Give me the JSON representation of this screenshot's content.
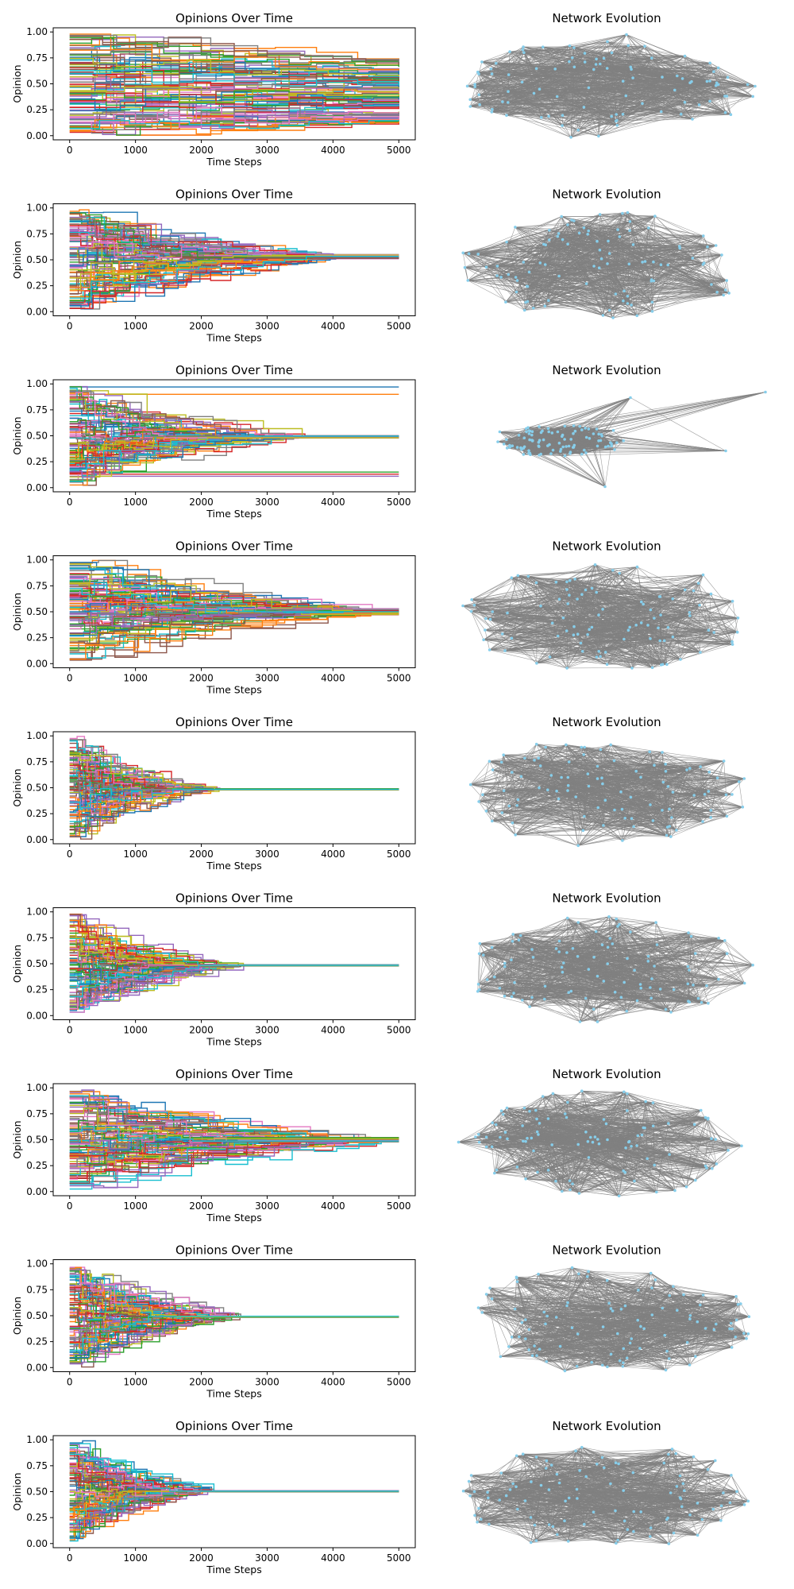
{
  "chart_data": [
    {
      "type": "line",
      "title": "Opinions Over Time",
      "xlabel": "Time Steps",
      "ylabel": "Opinion",
      "xlim": [
        -250,
        5250
      ],
      "ylim": [
        -0.04,
        1.04
      ],
      "xticks": [
        0,
        1000,
        2000,
        3000,
        4000,
        5000
      ],
      "yticks": [
        0.0,
        0.25,
        0.5,
        0.75,
        1.0
      ],
      "xtick_labels": [
        "0",
        "1000",
        "2000",
        "3000",
        "4000",
        "5000"
      ],
      "ytick_labels": [
        "0.00",
        "0.25",
        "0.50",
        "0.75",
        "1.00"
      ],
      "series_count": 100,
      "t_start": 0,
      "t_end": 5000,
      "initial_range": [
        0.02,
        0.98
      ],
      "final_range": [
        0.12,
        0.72
      ],
      "consensus_value": null,
      "consensus_step": null
    },
    {
      "type": "network",
      "title": "Network Evolution",
      "node_count": 100,
      "node_color": "#87ceeb",
      "edge_color": "#808080",
      "shape": "wide-cluster-with-outlier"
    },
    {
      "type": "line",
      "title": "Opinions Over Time",
      "xlabel": "Time Steps",
      "ylabel": "Opinion",
      "xlim": [
        -250,
        5250
      ],
      "ylim": [
        -0.04,
        1.04
      ],
      "xticks": [
        0,
        1000,
        2000,
        3000,
        4000,
        5000
      ],
      "yticks": [
        0.0,
        0.25,
        0.5,
        0.75,
        1.0
      ],
      "xtick_labels": [
        "0",
        "1000",
        "2000",
        "3000",
        "4000",
        "5000"
      ],
      "ytick_labels": [
        "0.00",
        "0.25",
        "0.50",
        "0.75",
        "1.00"
      ],
      "series_count": 100,
      "t_start": 0,
      "t_end": 5000,
      "initial_range": [
        0.02,
        0.98
      ],
      "final_range": [
        0.51,
        0.55
      ],
      "consensus_value": 0.53,
      "consensus_step": 4100
    },
    {
      "type": "network",
      "title": "Network Evolution",
      "node_count": 100,
      "node_color": "#87ceeb",
      "edge_color": "#808080",
      "shape": "dense-ellipse"
    },
    {
      "type": "line",
      "title": "Opinions Over Time",
      "xlabel": "Time Steps",
      "ylabel": "Opinion",
      "xlim": [
        -250,
        5250
      ],
      "ylim": [
        -0.04,
        1.04
      ],
      "xticks": [
        0,
        1000,
        2000,
        3000,
        4000,
        5000
      ],
      "yticks": [
        0.0,
        0.25,
        0.5,
        0.75,
        1.0
      ],
      "xtick_labels": [
        "0",
        "1000",
        "2000",
        "3000",
        "4000",
        "5000"
      ],
      "ytick_labels": [
        "0.00",
        "0.25",
        "0.50",
        "0.75",
        "1.00"
      ],
      "series_count": 100,
      "t_start": 0,
      "t_end": 5000,
      "initial_range": [
        0.02,
        0.98
      ],
      "final_range": [
        0.48,
        0.5
      ],
      "consensus_value": 0.49,
      "consensus_step": 3600,
      "outliers": [
        0.97,
        0.9,
        0.15,
        0.13,
        0.11
      ]
    },
    {
      "type": "network",
      "title": "Network Evolution",
      "node_count": 100,
      "node_color": "#87ceeb",
      "edge_color": "#808080",
      "shape": "compact-cluster-with-outliers"
    },
    {
      "type": "line",
      "title": "Opinions Over Time",
      "xlabel": "Time Steps",
      "ylabel": "Opinion",
      "xlim": [
        -250,
        5250
      ],
      "ylim": [
        -0.04,
        1.04
      ],
      "xticks": [
        0,
        1000,
        2000,
        3000,
        4000,
        5000
      ],
      "yticks": [
        0.0,
        0.25,
        0.5,
        0.75,
        1.0
      ],
      "xtick_labels": [
        "0",
        "1000",
        "2000",
        "3000",
        "4000",
        "5000"
      ],
      "ytick_labels": [
        "0.00",
        "0.25",
        "0.50",
        "0.75",
        "1.00"
      ],
      "series_count": 100,
      "t_start": 0,
      "t_end": 5000,
      "initial_range": [
        0.02,
        0.98
      ],
      "final_range": [
        0.47,
        0.53
      ],
      "consensus_value": 0.5,
      "consensus_step": 4800
    },
    {
      "type": "network",
      "title": "Network Evolution",
      "node_count": 100,
      "node_color": "#87ceeb",
      "edge_color": "#808080",
      "shape": "dense-ellipse"
    },
    {
      "type": "line",
      "title": "Opinions Over Time",
      "xlabel": "Time Steps",
      "ylabel": "Opinion",
      "xlim": [
        -250,
        5250
      ],
      "ylim": [
        -0.04,
        1.04
      ],
      "xticks": [
        0,
        1000,
        2000,
        3000,
        4000,
        5000
      ],
      "yticks": [
        0.0,
        0.25,
        0.5,
        0.75,
        1.0
      ],
      "xtick_labels": [
        "0",
        "1000",
        "2000",
        "3000",
        "4000",
        "5000"
      ],
      "ytick_labels": [
        "0.00",
        "0.25",
        "0.50",
        "0.75",
        "1.00"
      ],
      "series_count": 100,
      "t_start": 0,
      "t_end": 5000,
      "initial_range": [
        0.02,
        0.98
      ],
      "final_range": [
        0.48,
        0.49
      ],
      "consensus_value": 0.485,
      "consensus_step": 2300
    },
    {
      "type": "network",
      "title": "Network Evolution",
      "node_count": 100,
      "node_color": "#87ceeb",
      "edge_color": "#808080",
      "shape": "dense-ellipse"
    },
    {
      "type": "line",
      "title": "Opinions Over Time",
      "xlabel": "Time Steps",
      "ylabel": "Opinion",
      "xlim": [
        -250,
        5250
      ],
      "ylim": [
        -0.04,
        1.04
      ],
      "xticks": [
        0,
        1000,
        2000,
        3000,
        4000,
        5000
      ],
      "yticks": [
        0.0,
        0.25,
        0.5,
        0.75,
        1.0
      ],
      "xtick_labels": [
        "0",
        "1000",
        "2000",
        "3000",
        "4000",
        "5000"
      ],
      "ytick_labels": [
        "0.00",
        "0.25",
        "0.50",
        "0.75",
        "1.00"
      ],
      "series_count": 100,
      "t_start": 0,
      "t_end": 5000,
      "initial_range": [
        0.02,
        0.98
      ],
      "final_range": [
        0.48,
        0.49
      ],
      "consensus_value": 0.485,
      "consensus_step": 2700
    },
    {
      "type": "network",
      "title": "Network Evolution",
      "node_count": 100,
      "node_color": "#87ceeb",
      "edge_color": "#808080",
      "shape": "dense-ellipse"
    },
    {
      "type": "line",
      "title": "Opinions Over Time",
      "xlabel": "Time Steps",
      "ylabel": "Opinion",
      "xlim": [
        -250,
        5250
      ],
      "ylim": [
        -0.04,
        1.04
      ],
      "xticks": [
        0,
        1000,
        2000,
        3000,
        4000,
        5000
      ],
      "yticks": [
        0.0,
        0.25,
        0.5,
        0.75,
        1.0
      ],
      "xtick_labels": [
        "0",
        "1000",
        "2000",
        "3000",
        "4000",
        "5000"
      ],
      "ytick_labels": [
        "0.00",
        "0.25",
        "0.50",
        "0.75",
        "1.00"
      ],
      "series_count": 100,
      "t_start": 0,
      "t_end": 5000,
      "initial_range": [
        0.02,
        0.98
      ],
      "final_range": [
        0.48,
        0.52
      ],
      "consensus_value": 0.5,
      "consensus_step": 4800
    },
    {
      "type": "network",
      "title": "Network Evolution",
      "node_count": 100,
      "node_color": "#87ceeb",
      "edge_color": "#808080",
      "shape": "dense-ellipse"
    },
    {
      "type": "line",
      "title": "Opinions Over Time",
      "xlabel": "Time Steps",
      "ylabel": "Opinion",
      "xlim": [
        -250,
        5250
      ],
      "ylim": [
        -0.04,
        1.04
      ],
      "xticks": [
        0,
        1000,
        2000,
        3000,
        4000,
        5000
      ],
      "yticks": [
        0.0,
        0.25,
        0.5,
        0.75,
        1.0
      ],
      "xtick_labels": [
        "0",
        "1000",
        "2000",
        "3000",
        "4000",
        "5000"
      ],
      "ytick_labels": [
        "0.00",
        "0.25",
        "0.50",
        "0.75",
        "1.00"
      ],
      "series_count": 100,
      "t_start": 0,
      "t_end": 5000,
      "initial_range": [
        0.02,
        0.98
      ],
      "final_range": [
        0.485,
        0.495
      ],
      "consensus_value": 0.49,
      "consensus_step": 2600
    },
    {
      "type": "network",
      "title": "Network Evolution",
      "node_count": 100,
      "node_color": "#87ceeb",
      "edge_color": "#808080",
      "shape": "dense-ellipse"
    },
    {
      "type": "line",
      "title": "Opinions Over Time",
      "xlabel": "Time Steps",
      "ylabel": "Opinion",
      "xlim": [
        -250,
        5250
      ],
      "ylim": [
        -0.04,
        1.04
      ],
      "xticks": [
        0,
        1000,
        2000,
        3000,
        4000,
        5000
      ],
      "yticks": [
        0.0,
        0.25,
        0.5,
        0.75,
        1.0
      ],
      "xtick_labels": [
        "0",
        "1000",
        "2000",
        "3000",
        "4000",
        "5000"
      ],
      "ytick_labels": [
        "0.00",
        "0.25",
        "0.50",
        "0.75",
        "1.00"
      ],
      "series_count": 100,
      "t_start": 0,
      "t_end": 5000,
      "initial_range": [
        0.02,
        0.98
      ],
      "final_range": [
        0.5,
        0.51
      ],
      "consensus_value": 0.505,
      "consensus_step": 2200
    },
    {
      "type": "network",
      "title": "Network Evolution",
      "node_count": 100,
      "node_color": "#87ceeb",
      "edge_color": "#808080",
      "shape": "dense-ellipse"
    }
  ],
  "palette": [
    "#1f77b4",
    "#ff7f0e",
    "#2ca02c",
    "#d62728",
    "#9467bd",
    "#8c564b",
    "#e377c2",
    "#7f7f7f",
    "#bcbd22",
    "#17becf"
  ]
}
